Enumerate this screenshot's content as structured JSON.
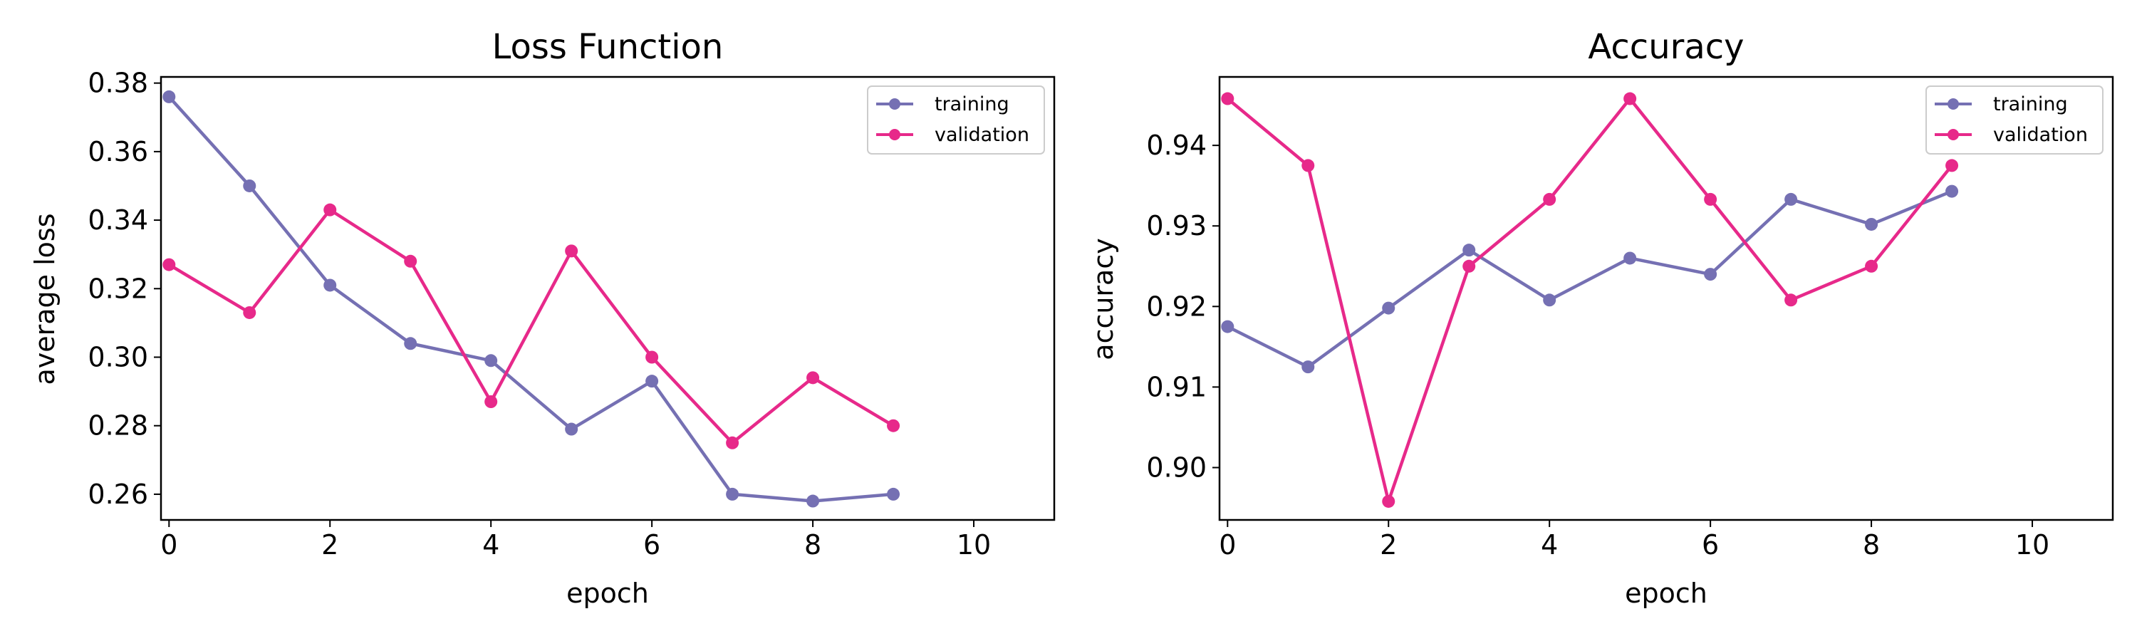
{
  "figure": {
    "background": "#ffffff"
  },
  "chart_data": [
    {
      "type": "line",
      "title": "Loss Function",
      "xlabel": "epoch",
      "ylabel": "average loss",
      "xlim": [
        -0.1,
        11
      ],
      "ylim": [
        0.2525,
        0.3818
      ],
      "xticks": [
        0,
        2,
        4,
        6,
        8,
        10
      ],
      "yticks": [
        0.26,
        0.28,
        0.3,
        0.32,
        0.34,
        0.36,
        0.38
      ],
      "ytick_labels": [
        "0.26",
        "0.28",
        "0.30",
        "0.32",
        "0.34",
        "0.36",
        "0.38"
      ],
      "legend_position": "top-right",
      "x": [
        0,
        1,
        2,
        3,
        4,
        5,
        6,
        7,
        8,
        9
      ],
      "series": [
        {
          "name": "training",
          "color": "#7570b3",
          "values": [
            0.376,
            0.35,
            0.321,
            0.304,
            0.299,
            0.279,
            0.293,
            0.26,
            0.258,
            0.26
          ]
        },
        {
          "name": "validation",
          "color": "#e7298a",
          "values": [
            0.327,
            0.313,
            0.343,
            0.328,
            0.287,
            0.331,
            0.3,
            0.275,
            0.294,
            0.28
          ]
        }
      ]
    },
    {
      "type": "line",
      "title": "Accuracy",
      "xlabel": "epoch",
      "ylabel": "accuracy",
      "xlim": [
        -0.1,
        11
      ],
      "ylim": [
        0.8935,
        0.9485
      ],
      "xticks": [
        0,
        2,
        4,
        6,
        8,
        10
      ],
      "yticks": [
        0.9,
        0.91,
        0.92,
        0.93,
        0.94
      ],
      "ytick_labels": [
        "0.90",
        "0.91",
        "0.92",
        "0.93",
        "0.94"
      ],
      "legend_position": "top-right",
      "x": [
        0,
        1,
        2,
        3,
        4,
        5,
        6,
        7,
        8,
        9
      ],
      "series": [
        {
          "name": "training",
          "color": "#7570b3",
          "values": [
            0.9175,
            0.9125,
            0.9198,
            0.927,
            0.9208,
            0.926,
            0.924,
            0.9333,
            0.9302,
            0.9343
          ]
        },
        {
          "name": "validation",
          "color": "#e7298a",
          "values": [
            0.9458,
            0.9375,
            0.8958,
            0.925,
            0.9333,
            0.9458,
            0.9333,
            0.9208,
            0.925,
            0.9375
          ]
        }
      ]
    }
  ]
}
